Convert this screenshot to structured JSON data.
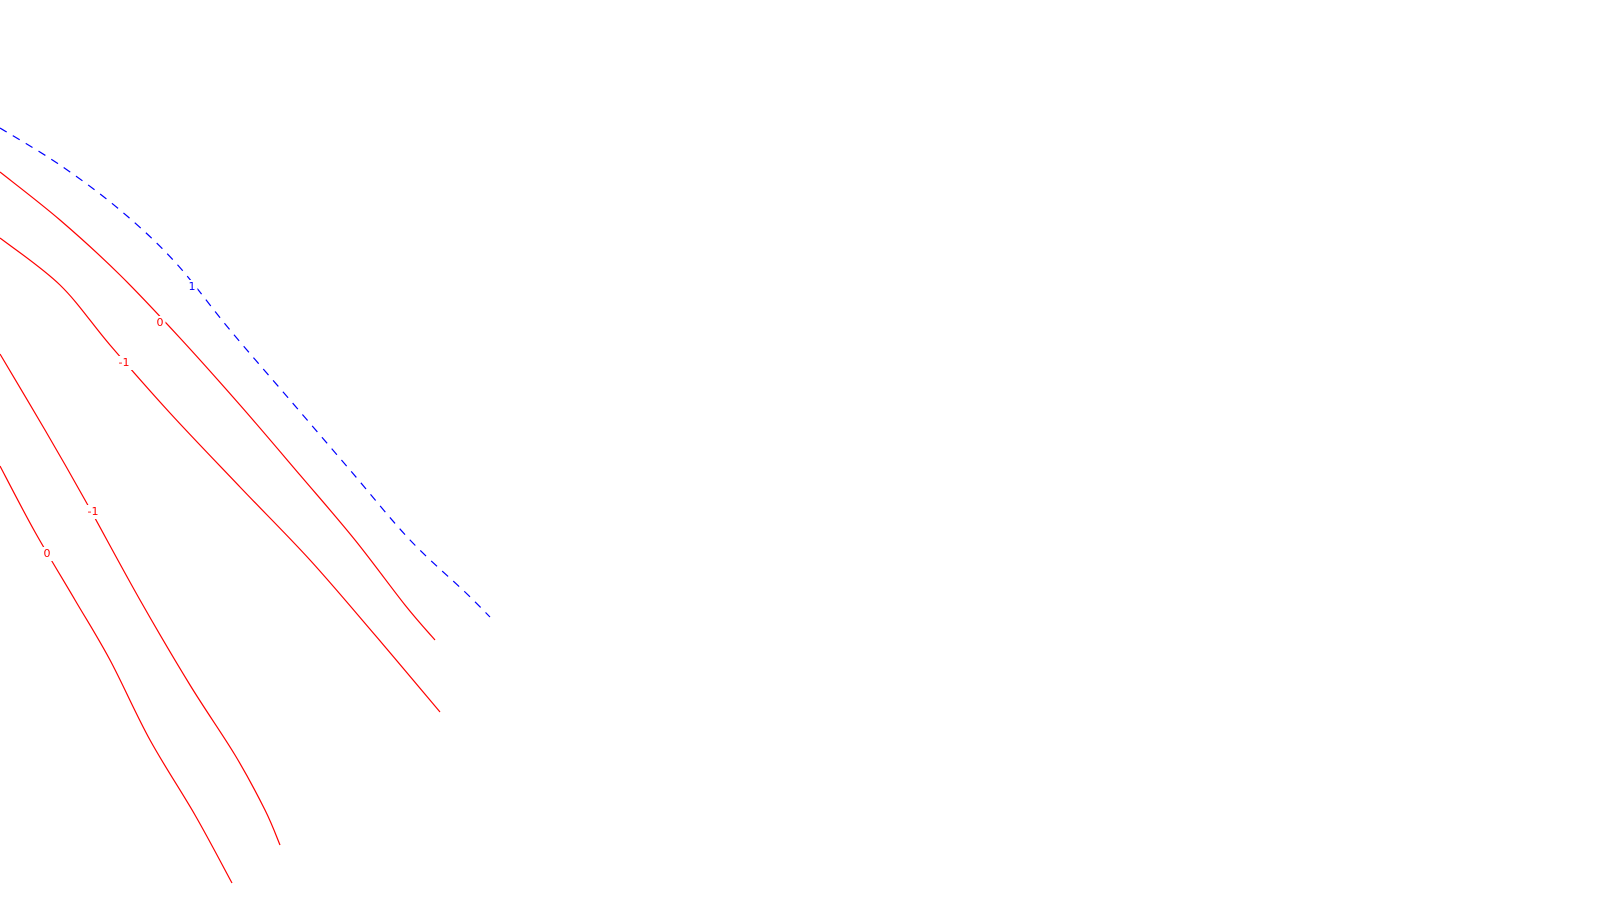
{
  "chart_data": {
    "type": "contour",
    "title": "",
    "xlabel": "",
    "ylabel": "",
    "grid": false,
    "legend": "none",
    "colors": {
      "negative": "#ff0000",
      "positive": "#0000ff",
      "background": "#ffffff"
    },
    "contours": [
      {
        "level": 1,
        "label": "1",
        "color": "#0000ff",
        "style": "dashed",
        "points": [
          [
            0,
            128
          ],
          [
            60,
            165
          ],
          [
            120,
            210
          ],
          [
            175,
            262
          ],
          [
            230,
            330
          ],
          [
            290,
            400
          ],
          [
            350,
            470
          ],
          [
            410,
            540
          ],
          [
            465,
            592
          ],
          [
            490,
            617
          ]
        ]
      },
      {
        "level": 0,
        "label": "0",
        "color": "#ff0000",
        "style": "solid",
        "points": [
          [
            0,
            172
          ],
          [
            60,
            220
          ],
          [
            120,
            275
          ],
          [
            180,
            338
          ],
          [
            240,
            405
          ],
          [
            300,
            475
          ],
          [
            355,
            540
          ],
          [
            405,
            605
          ],
          [
            435,
            640
          ]
        ]
      },
      {
        "level": -1,
        "label": "-1",
        "color": "#ff0000",
        "style": "solid",
        "points": [
          [
            0,
            238
          ],
          [
            60,
            285
          ],
          [
            110,
            345
          ],
          [
            170,
            413
          ],
          [
            240,
            487
          ],
          [
            310,
            560
          ],
          [
            375,
            635
          ],
          [
            440,
            712
          ]
        ]
      },
      {
        "level": -1,
        "label": "-1",
        "color": "#ff0000",
        "style": "solid",
        "points": [
          [
            0,
            354
          ],
          [
            45,
            430
          ],
          [
            85,
            500
          ],
          [
            140,
            600
          ],
          [
            190,
            685
          ],
          [
            235,
            755
          ],
          [
            265,
            810
          ],
          [
            280,
            845
          ]
        ]
      },
      {
        "level": 0,
        "label": "0",
        "color": "#ff0000",
        "style": "solid",
        "points": [
          [
            0,
            466
          ],
          [
            35,
            532
          ],
          [
            75,
            600
          ],
          [
            110,
            660
          ],
          [
            150,
            740
          ],
          [
            195,
            815
          ],
          [
            232,
            883
          ]
        ]
      }
    ],
    "labels": [
      {
        "text": "1",
        "color": "#0000ff",
        "x": 192,
        "y": 287
      },
      {
        "text": "0",
        "color": "#ff0000",
        "x": 160,
        "y": 323
      },
      {
        "text": "-1",
        "color": "#ff0000",
        "x": 124,
        "y": 363
      },
      {
        "text": "-1",
        "color": "#ff0000",
        "x": 93,
        "y": 512
      },
      {
        "text": "0",
        "color": "#ff0000",
        "x": 47,
        "y": 554
      }
    ]
  }
}
